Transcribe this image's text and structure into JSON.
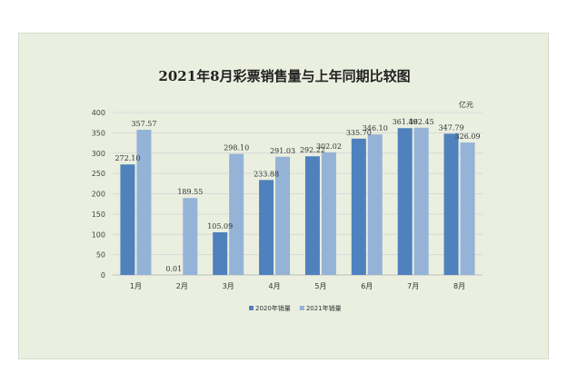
{
  "chart_data": {
    "type": "bar",
    "title": "2021年8月彩票销售量与上年同期比较图",
    "unit_label": "亿元",
    "categories": [
      "1月",
      "2月",
      "3月",
      "4月",
      "5月",
      "6月",
      "7月",
      "8月"
    ],
    "series": [
      {
        "name": "2020年销量",
        "color": "#4f81bd",
        "values": [
          272.1,
          0.01,
          105.09,
          233.88,
          292.22,
          335.7,
          361.49,
          347.79
        ],
        "labels": [
          "272.10",
          "0.01",
          "105.09",
          "233.88",
          "292.22",
          "335.70",
          "361.49",
          "347.79"
        ]
      },
      {
        "name": "2021年销量",
        "color": "#95b3d7",
        "values": [
          357.57,
          189.55,
          298.1,
          291.03,
          302.02,
          346.1,
          362.45,
          326.09
        ],
        "labels": [
          "357.57",
          "189.55",
          "298.10",
          "291.03",
          "302.02",
          "346.10",
          "362.45",
          "326.09"
        ]
      }
    ],
    "ylim": [
      0,
      400
    ],
    "yticks": [
      "0",
      "50",
      "100",
      "150",
      "200",
      "250",
      "300",
      "350",
      "400"
    ],
    "grid": true,
    "legend": "bottom"
  }
}
